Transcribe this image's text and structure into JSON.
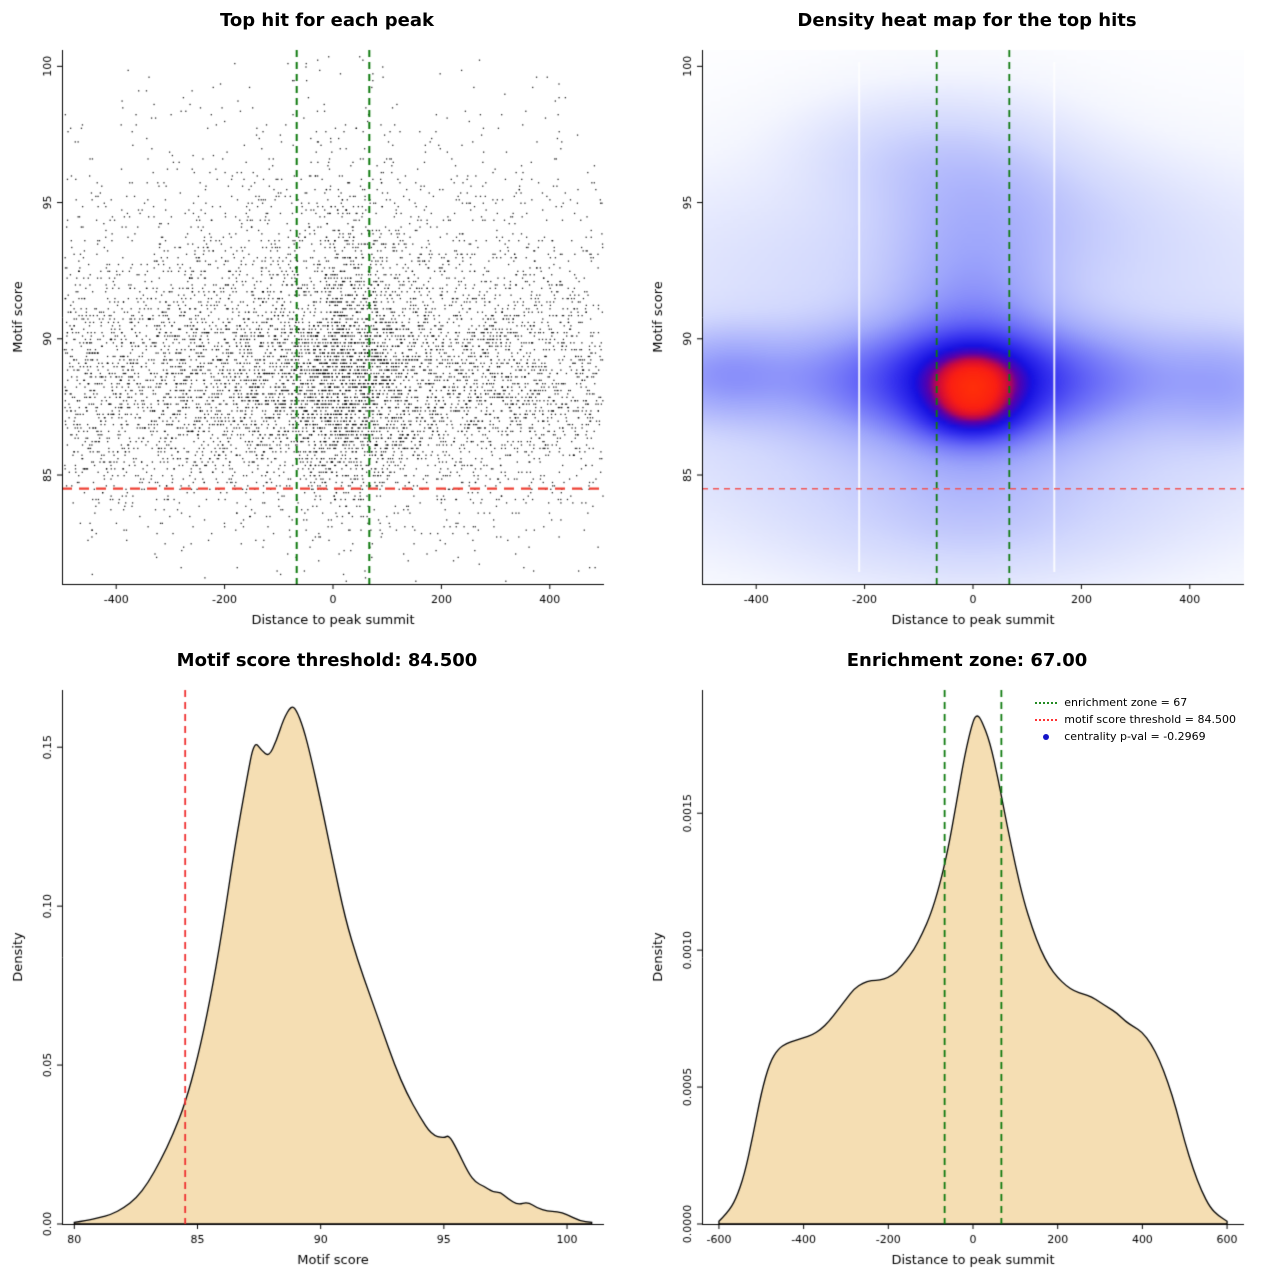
{
  "figure": {
    "background": "#ffffff",
    "accent_green": "#0e7a0e",
    "accent_red": "#ee4035",
    "fill_wheat": "#f5deb3"
  },
  "chart_data": [
    {
      "id": "top-hits-scatter",
      "type": "scatter",
      "title": "Top hit for each peak",
      "xlabel": "Distance to peak summit",
      "ylabel": "Motif score",
      "xlim": [
        -500,
        500
      ],
      "ylim": [
        81,
        100.6
      ],
      "xticks": [
        -400,
        -200,
        0,
        200,
        400
      ],
      "yticks": [
        85,
        90,
        95,
        100
      ],
      "n_points": 8000,
      "point_color": "#000000",
      "enrichment_zone": 67,
      "score_threshold": 84.5,
      "zone_line_color": "#0e7a0e",
      "threshold_line_color": "#ee4035",
      "grid": false,
      "legend_position": "none"
    },
    {
      "id": "top-hits-heatmap",
      "type": "heatmap",
      "title": "Density heat map for the top hits",
      "xlabel": "Distance to peak summit",
      "ylabel": "Motif score",
      "xlim": [
        -500,
        500
      ],
      "ylim": [
        81,
        100.6
      ],
      "xticks": [
        -400,
        -200,
        0,
        200,
        400
      ],
      "yticks": [
        85,
        90,
        95,
        100
      ],
      "enrichment_zone": 67,
      "score_threshold": 84.5,
      "zone_line_color": "#0e7a0e",
      "threshold_line_color": "#f25555",
      "gamma": 0.45,
      "density_components": [
        [
          1.0,
          0,
          62,
          88.55,
          0.8
        ],
        [
          0.8,
          0,
          58,
          87.3,
          0.65
        ],
        [
          0.6,
          0,
          150,
          88.3,
          1.35
        ],
        [
          0.38,
          0,
          300,
          88.6,
          1.15
        ],
        [
          0.22,
          -470,
          85,
          88.7,
          1.05
        ],
        [
          0.16,
          480,
          85,
          88.2,
          1.3
        ],
        [
          0.3,
          0,
          95,
          89.8,
          3.0
        ],
        [
          0.1,
          0,
          130,
          95.8,
          1.7
        ],
        [
          0.12,
          0,
          380,
          86.0,
          2.2
        ],
        [
          0.09,
          0,
          420,
          92.3,
          2.4
        ],
        [
          0.07,
          0,
          210,
          83.2,
          1.5
        ],
        [
          0.05,
          -150,
          120,
          96.8,
          1.3
        ],
        [
          0.05,
          150,
          160,
          94.5,
          1.5
        ]
      ],
      "colormap": [
        [
          0.0,
          [
            255,
            255,
            255
          ]
        ],
        [
          0.08,
          [
            244,
            246,
            254
          ]
        ],
        [
          0.22,
          [
            210,
            216,
            253
          ]
        ],
        [
          0.38,
          [
            158,
            166,
            251
          ]
        ],
        [
          0.52,
          [
            104,
            106,
            248
          ]
        ],
        [
          0.64,
          [
            56,
            52,
            240
          ]
        ],
        [
          0.74,
          [
            22,
            16,
            225
          ]
        ],
        [
          0.82,
          [
            90,
            0,
            170
          ]
        ],
        [
          0.88,
          [
            205,
            10,
            60
          ]
        ],
        [
          0.94,
          [
            250,
            30,
            20
          ]
        ],
        [
          1.0,
          [
            255,
            45,
            10
          ]
        ]
      ],
      "white_streaks": [
        -210,
        150
      ]
    },
    {
      "id": "motif-score-density",
      "type": "area",
      "title": "Motif score threshold: 84.500",
      "xlabel": "Motif score",
      "ylabel": "Density",
      "xlim": [
        79.5,
        101.5
      ],
      "ylim": [
        0,
        0.168
      ],
      "xticks": [
        80,
        85,
        90,
        95,
        100
      ],
      "yticks": [
        0,
        0.05,
        0.1,
        0.15
      ],
      "ytick_labels": [
        "0.00",
        "0.05",
        "0.10",
        "0.15"
      ],
      "fill_color": "#f5deb3",
      "line_color": "#000000",
      "threshold": 84.5,
      "threshold_line_color": "#f03030",
      "curve": [
        [
          80.0,
          0.0005
        ],
        [
          80.5,
          0.001
        ],
        [
          81.0,
          0.002
        ],
        [
          81.5,
          0.003
        ],
        [
          82.0,
          0.005
        ],
        [
          82.5,
          0.008
        ],
        [
          83.0,
          0.013
        ],
        [
          83.5,
          0.02
        ],
        [
          84.0,
          0.028
        ],
        [
          84.5,
          0.038
        ],
        [
          85.0,
          0.052
        ],
        [
          85.5,
          0.07
        ],
        [
          86.0,
          0.092
        ],
        [
          86.5,
          0.118
        ],
        [
          87.0,
          0.14
        ],
        [
          87.3,
          0.152
        ],
        [
          87.6,
          0.149
        ],
        [
          87.9,
          0.147
        ],
        [
          88.2,
          0.152
        ],
        [
          88.5,
          0.159
        ],
        [
          88.8,
          0.163
        ],
        [
          89.0,
          0.162
        ],
        [
          89.3,
          0.156
        ],
        [
          89.6,
          0.147
        ],
        [
          90.0,
          0.133
        ],
        [
          90.5,
          0.114
        ],
        [
          91.0,
          0.096
        ],
        [
          91.5,
          0.083
        ],
        [
          92.0,
          0.072
        ],
        [
          92.5,
          0.061
        ],
        [
          93.0,
          0.05
        ],
        [
          93.5,
          0.041
        ],
        [
          94.0,
          0.034
        ],
        [
          94.5,
          0.028
        ],
        [
          95.0,
          0.027
        ],
        [
          95.2,
          0.028
        ],
        [
          95.5,
          0.024
        ],
        [
          96.0,
          0.016
        ],
        [
          96.3,
          0.013
        ],
        [
          96.6,
          0.012
        ],
        [
          97.0,
          0.01
        ],
        [
          97.3,
          0.01
        ],
        [
          97.6,
          0.008
        ],
        [
          98.0,
          0.006
        ],
        [
          98.4,
          0.007
        ],
        [
          98.8,
          0.005
        ],
        [
          99.2,
          0.004
        ],
        [
          99.6,
          0.004
        ],
        [
          100.0,
          0.003
        ],
        [
          100.5,
          0.001
        ],
        [
          101.0,
          0.0005
        ]
      ]
    },
    {
      "id": "summit-distance-density",
      "type": "area",
      "title": "Enrichment zone: 67.00",
      "xlabel": "Distance to peak summit",
      "ylabel": "Density",
      "xlim": [
        -640,
        640
      ],
      "ylim": [
        0,
        0.00195
      ],
      "xticks": [
        -600,
        -400,
        -200,
        0,
        200,
        400,
        600
      ],
      "yticks": [
        0,
        0.0005,
        0.001,
        0.0015
      ],
      "ytick_labels": [
        "0.0000",
        "0.0005",
        "0.0010",
        "0.0015"
      ],
      "fill_color": "#f5deb3",
      "line_color": "#000000",
      "enrichment_zone": 67,
      "zone_line_color": "#0e7a0e",
      "curve": [
        [
          -600,
          1e-05
        ],
        [
          -580,
          4e-05
        ],
        [
          -560,
          9e-05
        ],
        [
          -540,
          0.00018
        ],
        [
          -520,
          0.00032
        ],
        [
          -500,
          0.00048
        ],
        [
          -480,
          0.00059
        ],
        [
          -460,
          0.00064
        ],
        [
          -440,
          0.00066
        ],
        [
          -420,
          0.00067
        ],
        [
          -400,
          0.00068
        ],
        [
          -380,
          0.00069
        ],
        [
          -360,
          0.00071
        ],
        [
          -340,
          0.00074
        ],
        [
          -320,
          0.00078
        ],
        [
          -300,
          0.00082
        ],
        [
          -280,
          0.00086
        ],
        [
          -260,
          0.00088
        ],
        [
          -240,
          0.00089
        ],
        [
          -220,
          0.00089
        ],
        [
          -200,
          0.0009
        ],
        [
          -180,
          0.00092
        ],
        [
          -160,
          0.00096
        ],
        [
          -140,
          0.001
        ],
        [
          -120,
          0.00106
        ],
        [
          -100,
          0.00113
        ],
        [
          -80,
          0.00123
        ],
        [
          -60,
          0.00136
        ],
        [
          -40,
          0.00153
        ],
        [
          -20,
          0.00171
        ],
        [
          0,
          0.00184
        ],
        [
          10,
          0.00186
        ],
        [
          20,
          0.00184
        ],
        [
          40,
          0.00176
        ],
        [
          60,
          0.00162
        ],
        [
          80,
          0.00146
        ],
        [
          100,
          0.00131
        ],
        [
          120,
          0.00118
        ],
        [
          140,
          0.00108
        ],
        [
          160,
          0.001
        ],
        [
          180,
          0.00094
        ],
        [
          200,
          0.0009
        ],
        [
          220,
          0.00087
        ],
        [
          240,
          0.00085
        ],
        [
          260,
          0.00084
        ],
        [
          280,
          0.00083
        ],
        [
          300,
          0.00081
        ],
        [
          320,
          0.00079
        ],
        [
          340,
          0.00077
        ],
        [
          360,
          0.00074
        ],
        [
          380,
          0.00072
        ],
        [
          400,
          0.0007
        ],
        [
          420,
          0.00066
        ],
        [
          440,
          0.0006
        ],
        [
          460,
          0.00052
        ],
        [
          480,
          0.00042
        ],
        [
          500,
          0.0003
        ],
        [
          520,
          0.0002
        ],
        [
          540,
          0.00012
        ],
        [
          560,
          6e-05
        ],
        [
          580,
          3e-05
        ],
        [
          600,
          1e-05
        ]
      ],
      "legend": {
        "items": [
          {
            "label": "enrichment zone = 67",
            "color": "#228B22",
            "marker": "dotted-line"
          },
          {
            "label": "motif score threshold = 84.500",
            "color": "#ff3333",
            "marker": "dotted-line"
          },
          {
            "label": "centrality p-val = -0.2969",
            "color": "#1414c8",
            "marker": "dot"
          }
        ]
      }
    }
  ]
}
